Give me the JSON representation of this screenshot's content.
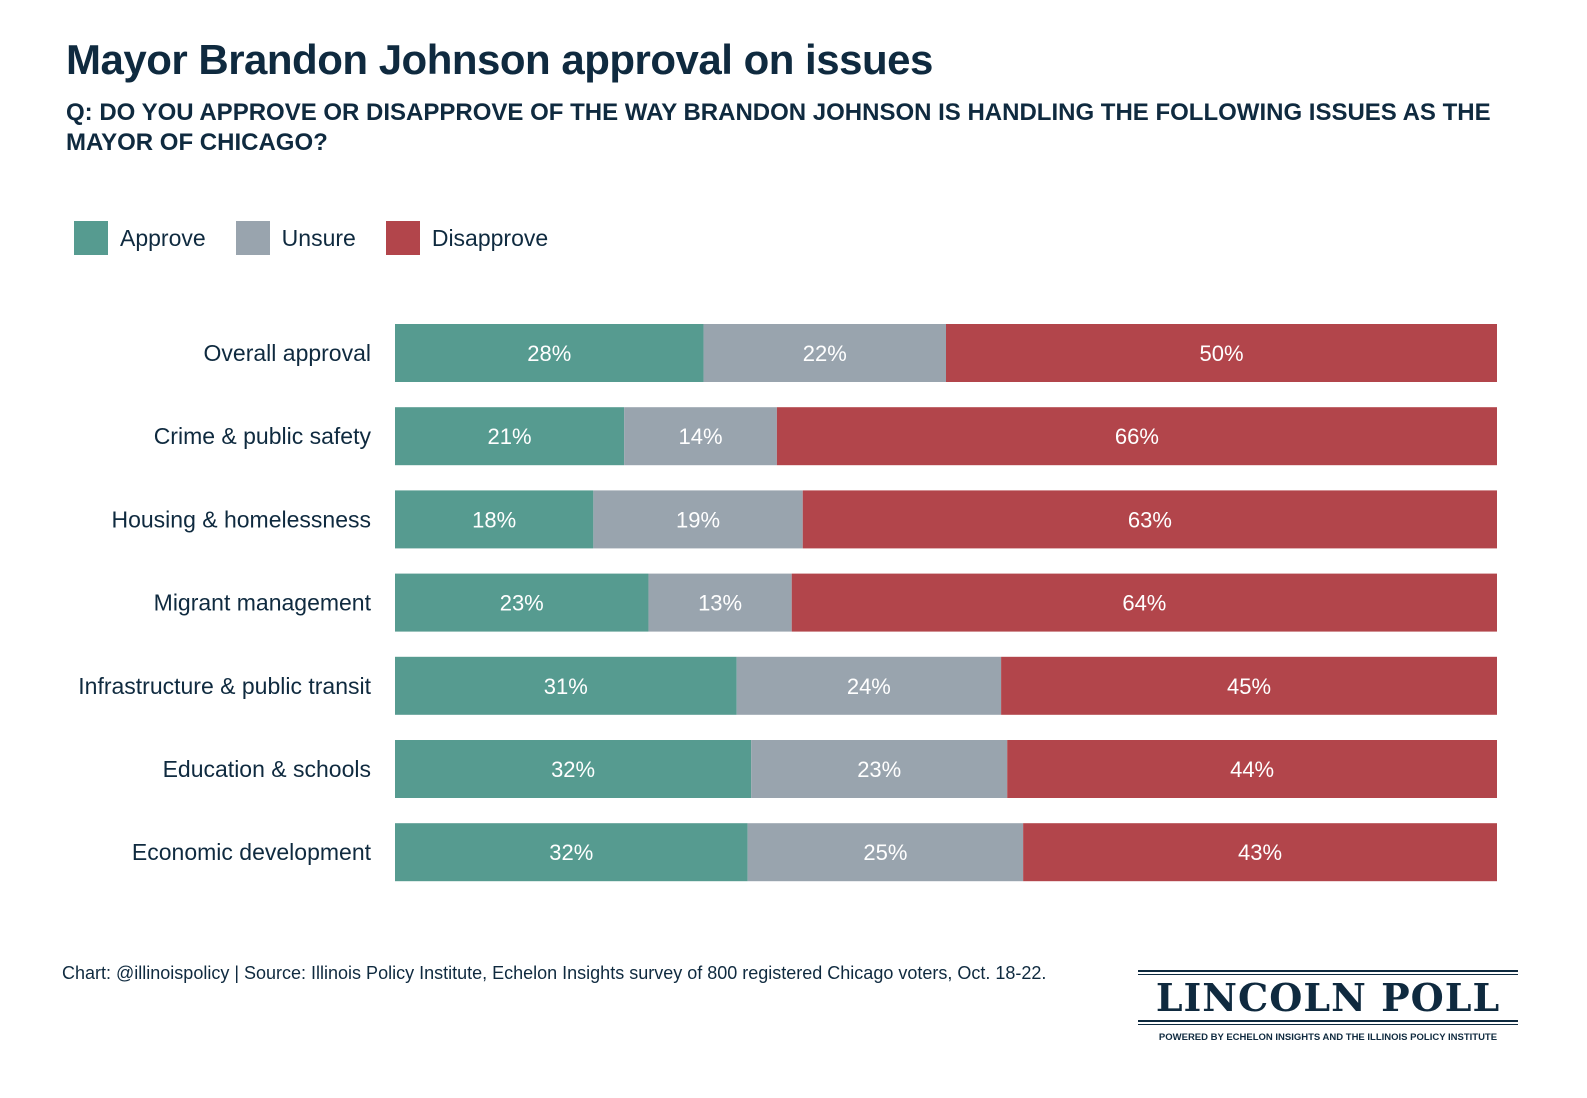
{
  "title": "Mayor Brandon Johnson approval on issues",
  "subtitle": "Q: DO YOU APPROVE OR DISAPPROVE OF THE WAY BRANDON JOHNSON IS HANDLING THE FOLLOWING ISSUES AS THE MAYOR OF CHICAGO?",
  "legend": [
    {
      "label": "Approve",
      "color": "#569b90"
    },
    {
      "label": "Unsure",
      "color": "#99a4ae"
    },
    {
      "label": "Disapprove",
      "color": "#b2454b"
    }
  ],
  "footer": "Chart: @illinoispolicy | Source: Illinois Policy Institute, Echelon Insights survey of 800 registered Chicago voters, Oct. 18-22.",
  "logo": {
    "name": "LINCOLN POLL",
    "tagline": "POWERED BY ECHELON INSIGHTS AND THE ILLINOIS POLICY INSTITUTE"
  },
  "chart_data": {
    "type": "bar",
    "orientation": "horizontal",
    "stacked": true,
    "normalized": true,
    "categories": [
      "Overall approval",
      "Crime & public safety",
      "Housing & homelessness",
      "Migrant management",
      "Infrastructure & public transit",
      "Education & schools",
      "Economic development"
    ],
    "series": [
      {
        "name": "Approve",
        "color": "#569b90",
        "values": [
          28,
          21,
          18,
          23,
          31,
          32,
          32
        ]
      },
      {
        "name": "Unsure",
        "color": "#99a4ae",
        "values": [
          22,
          14,
          19,
          13,
          24,
          23,
          25
        ]
      },
      {
        "name": "Disapprove",
        "color": "#b2454b",
        "values": [
          50,
          66,
          63,
          64,
          45,
          44,
          43
        ]
      }
    ],
    "value_suffix": "%",
    "legend_position": "top-left",
    "grid": false
  }
}
